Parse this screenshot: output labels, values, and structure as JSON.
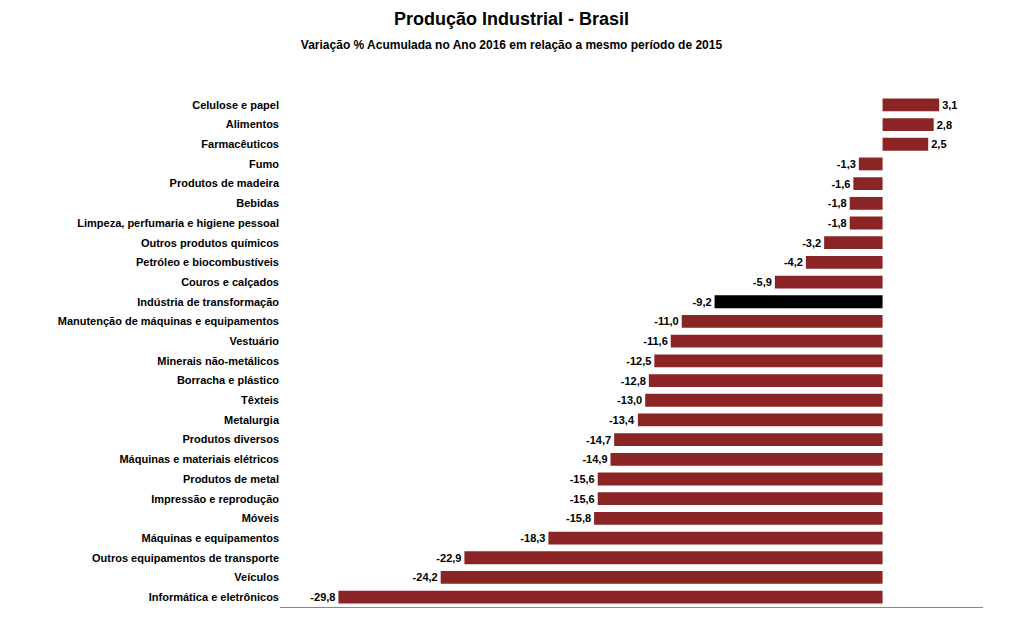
{
  "chart_data": {
    "type": "bar",
    "orientation": "horizontal",
    "title": "Produção Industrial - Brasil",
    "subtitle": "Variação % Acumulada no Ano 2016 em relação a mesmo período de 2015",
    "categories": [
      "Celulose e papel",
      "Alimentos",
      "Farmacêuticos",
      "Fumo",
      "Produtos de madeira",
      "Bebidas",
      "Limpeza, perfumaria e higiene pessoal",
      "Outros produtos químicos",
      "Petróleo e biocombustíveis",
      "Couros e calçados",
      "Indústria de transformação",
      "Manutenção de máquinas e equipamentos",
      "Vestuário",
      "Minerais não-metálicos",
      "Borracha e plástico",
      "Têxteis",
      "Metalurgia",
      "Produtos diversos",
      "Máquinas e materiais elétricos",
      "Produtos de metal",
      "Impressão e reprodução",
      "Móveis",
      "Máquinas e equipamentos",
      "Outros equipamentos de transporte",
      "Veículos",
      "Informática e eletrônicos"
    ],
    "values": [
      3.1,
      2.8,
      2.5,
      -1.3,
      -1.6,
      -1.8,
      -1.8,
      -3.2,
      -4.2,
      -5.9,
      -9.2,
      -11.0,
      -11.6,
      -12.5,
      -12.8,
      -13.0,
      -13.4,
      -14.7,
      -14.9,
      -15.6,
      -15.6,
      -15.8,
      -18.3,
      -22.9,
      -24.2,
      -29.8
    ],
    "value_labels": [
      "3,1",
      "2,8",
      "2,5",
      "-1,3",
      "-1,6",
      "-1,8",
      "-1,8",
      "-3,2",
      "-4,2",
      "-5,9",
      "-9,2",
      "-11,0",
      "-11,6",
      "-12,5",
      "-12,8",
      "-13,0",
      "-13,4",
      "-14,7",
      "-14,9",
      "-15,6",
      "-15,6",
      "-15,8",
      "-18,3",
      "-22,9",
      "-24,2",
      "-29,8"
    ],
    "colors": [
      "#8B2525",
      "#8B2525",
      "#8B2525",
      "#8B2525",
      "#8B2525",
      "#8B2525",
      "#8B2525",
      "#8B2525",
      "#8B2525",
      "#8B2525",
      "#000000",
      "#8B2525",
      "#8B2525",
      "#8B2525",
      "#8B2525",
      "#8B2525",
      "#8B2525",
      "#8B2525",
      "#8B2525",
      "#8B2525",
      "#8B2525",
      "#8B2525",
      "#8B2525",
      "#8B2525",
      "#8B2525",
      "#8B2525"
    ],
    "xlim": [
      -33,
      5.5
    ],
    "data_labels": true,
    "tick_labels": "y",
    "grid": false
  }
}
